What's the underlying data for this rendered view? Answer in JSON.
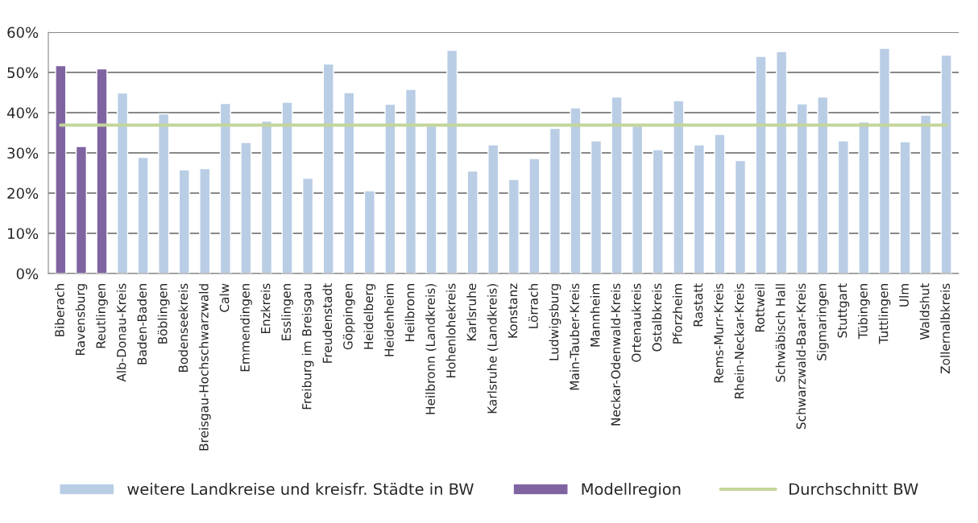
{
  "chart_data": {
    "type": "bar",
    "categories": [
      "Biberach",
      "Ravensburg",
      "Reutlingen",
      "Alb-Donau-Kreis",
      "Baden-Baden",
      "Böblingen",
      "Bodenseekreis",
      "Breisgau-Hochschwarzwald",
      "Calw",
      "Emmendingen",
      "Enzkreis",
      "Esslingen",
      "Freiburg im Breisgau",
      "Freudenstadt",
      "Göppingen",
      "Heidelberg",
      "Heidenheim",
      "Heilbronn",
      "Heilbronn (Landkreis)",
      "Hohenlohekreis",
      "Karlsruhe",
      "Karlsruhe (Landkreis)",
      "Konstanz",
      "Lörrach",
      "Ludwigsburg",
      "Main-Tauber-Kreis",
      "Mannheim",
      "Neckar-Odenwald-Kreis",
      "Ortenaukreis",
      "Ostalbkreis",
      "Pforzheim",
      "Rastatt",
      "Rems-Murr-Kreis",
      "Rhein-Neckar-Kreis",
      "Rottweil",
      "Schwäbisch Hall",
      "Schwarzwald-Baar-Kreis",
      "Sigmaringen",
      "Stuttgart",
      "Tübingen",
      "Tuttlingen",
      "Ulm",
      "Waldshut",
      "Zollernalbkreis"
    ],
    "series": [
      {
        "name": "weitere Landkreise und kreisfr. Städte in BW",
        "color": "#b9cde5",
        "values": [
          null,
          null,
          null,
          44.9,
          28.9,
          39.7,
          25.8,
          26.1,
          42.3,
          32.6,
          37.9,
          42.6,
          23.7,
          52.1,
          45.0,
          20.6,
          42.1,
          45.8,
          36.7,
          55.5,
          25.5,
          32.0,
          23.4,
          28.6,
          36.1,
          41.2,
          33.0,
          43.9,
          36.7,
          30.8,
          43.0,
          32.0,
          34.6,
          28.1,
          54.0,
          55.2,
          42.2,
          43.9,
          33.0,
          37.7,
          56.0,
          32.8,
          39.4,
          54.3
        ]
      },
      {
        "name": "Modellregion",
        "color": "#8064a2",
        "values": [
          51.7,
          31.6,
          50.9,
          null,
          null,
          null,
          null,
          null,
          null,
          null,
          null,
          null,
          null,
          null,
          null,
          null,
          null,
          null,
          null,
          null,
          null,
          null,
          null,
          null,
          null,
          null,
          null,
          null,
          null,
          null,
          null,
          null,
          null,
          null,
          null,
          null,
          null,
          null,
          null,
          null,
          null,
          null,
          null,
          null
        ]
      },
      {
        "name": "Durchschnitt BW",
        "type": "line",
        "color": "#c3d69b",
        "values": [
          36.9,
          36.9,
          36.9,
          36.9,
          36.9,
          36.9,
          36.9,
          36.9,
          36.9,
          36.9,
          36.9,
          36.9,
          36.9,
          36.9,
          36.9,
          36.9,
          36.9,
          36.9,
          36.9,
          36.9,
          36.9,
          36.9,
          36.9,
          36.9,
          36.9,
          36.9,
          36.9,
          36.9,
          36.9,
          36.9,
          36.9,
          36.9,
          36.9,
          36.9,
          36.9,
          36.9,
          36.9,
          36.9,
          36.9,
          36.9,
          36.9,
          36.9,
          36.9,
          36.9
        ]
      }
    ],
    "ylim": [
      0,
      60
    ],
    "yticks": [
      {
        "value": 0,
        "label": "0%"
      },
      {
        "value": 10,
        "label": "10%"
      },
      {
        "value": 20,
        "label": "20%"
      },
      {
        "value": 30,
        "label": "30%"
      },
      {
        "value": 40,
        "label": "40%"
      },
      {
        "value": 50,
        "label": "50%"
      },
      {
        "value": 60,
        "label": "60%"
      }
    ],
    "grid": "y",
    "legend": "bottom",
    "marker": "none",
    "line_style": "solid"
  }
}
